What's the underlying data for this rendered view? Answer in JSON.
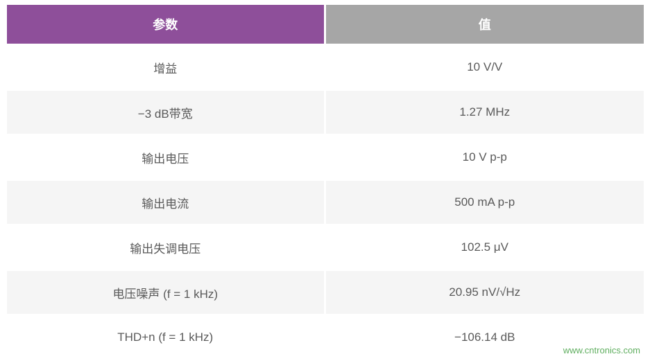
{
  "table": {
    "columns": [
      "参数",
      "值"
    ],
    "header_colors": [
      "#8e4f9a",
      "#a6a6a6"
    ],
    "header_text_color": "#ffffff",
    "header_fontsize": 18,
    "cell_fontsize": 17,
    "cell_text_color": "#595959",
    "row_bg_odd": "#ffffff",
    "row_bg_even": "#f5f5f5",
    "rows": [
      [
        "增益",
        "10 V/V"
      ],
      [
        "−3 dB带宽",
        "1.27 MHz"
      ],
      [
        "输出电压",
        "10 V p-p"
      ],
      [
        "输出电流",
        "500 mA p-p"
      ],
      [
        "输出失调电压",
        "102.5 μV"
      ],
      [
        "电压噪声 (f = 1 kHz)",
        "20.95 nV/√Hz"
      ],
      [
        "THD+n (f = 1 kHz)",
        "−106.14 dB"
      ]
    ]
  },
  "watermark": {
    "text": "www.cntronics.com",
    "color": "#5fae5f",
    "fontsize": 13
  }
}
